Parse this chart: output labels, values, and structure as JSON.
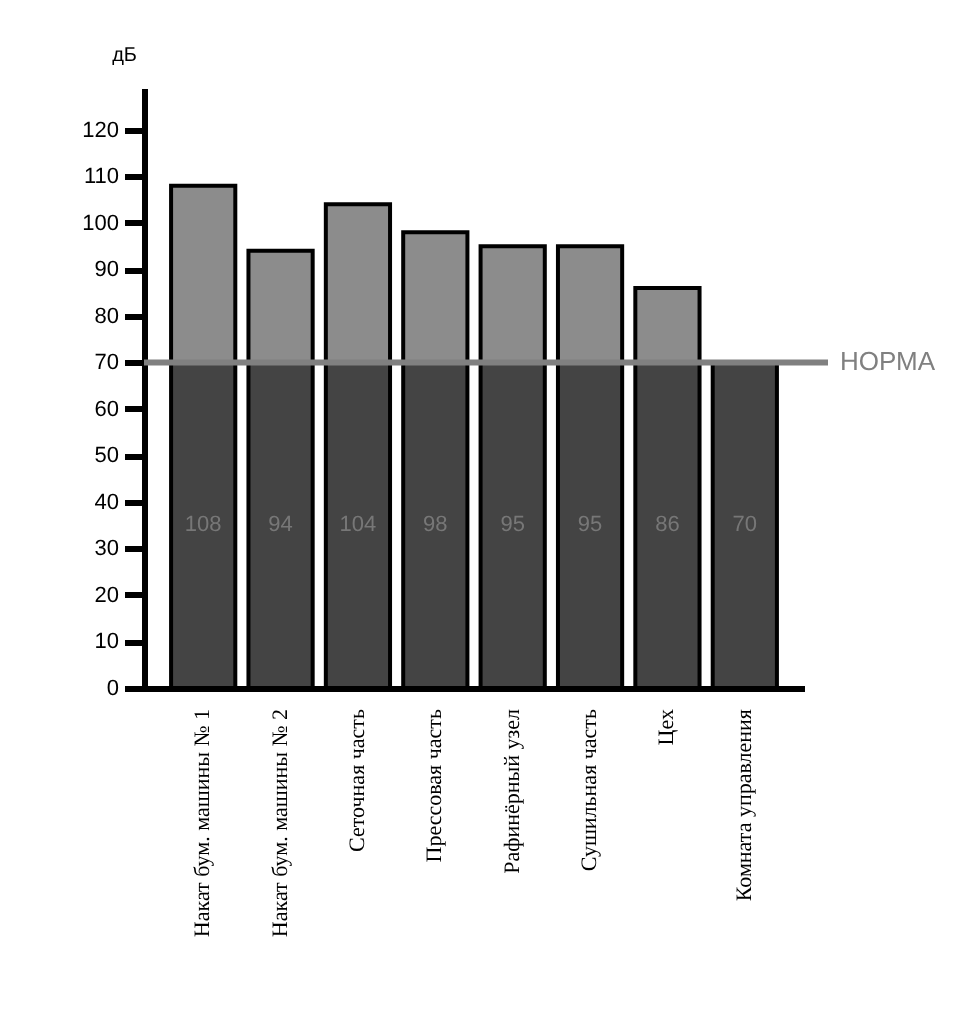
{
  "chart_data": {
    "type": "bar",
    "stacked": true,
    "ylabel": "дБ",
    "categories": [
      "Накат бум. машины № 1",
      "Накат бум. машины № 2",
      "Сеточная часть",
      "Прессовая часть",
      "Рафинёрный узел",
      "Сушильная часть",
      "Цех",
      "Комната управления"
    ],
    "series": [
      {
        "color": "#444444",
        "values": [
          70,
          70,
          70,
          70,
          70,
          70,
          70,
          70
        ]
      },
      {
        "color": "#8c8c8c",
        "values": [
          38,
          24,
          34,
          28,
          25,
          25,
          16,
          null
        ]
      }
    ],
    "totals": [
      "108",
      "94",
      "104",
      "98",
      "95",
      "95",
      "86",
      "70"
    ],
    "ylim": [
      0,
      129
    ],
    "yticks": [
      0,
      10,
      20,
      30,
      40,
      50,
      60,
      70,
      80,
      90,
      100,
      110,
      120
    ],
    "ref_lines": [
      {
        "axis": "y",
        "value": 70,
        "label": "НОРМА",
        "color": "#808080"
      }
    ]
  }
}
